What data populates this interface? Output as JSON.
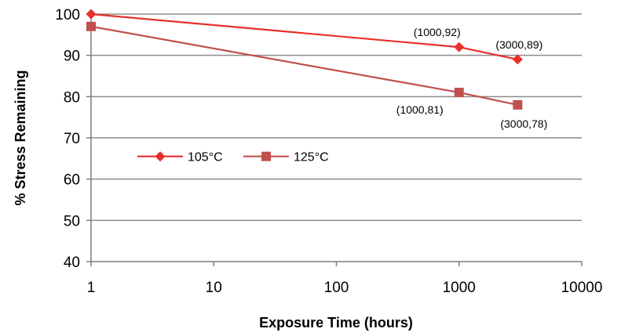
{
  "chart_data": {
    "type": "line",
    "xlabel": "Exposure Time (hours)",
    "ylabel": "% Stress Remaining",
    "xscale": "log",
    "xlim": [
      1,
      10000
    ],
    "ylim": [
      40,
      100
    ],
    "x_ticks": [
      1,
      10,
      100,
      1000,
      10000
    ],
    "x_tick_labels": [
      "1",
      "10",
      "100",
      "1000",
      "10000"
    ],
    "y_ticks": [
      40,
      50,
      60,
      70,
      80,
      90,
      100
    ],
    "y_tick_labels": [
      "40",
      "50",
      "60",
      "70",
      "80",
      "90",
      "100"
    ],
    "grid": "horizontal",
    "legend_position": "left-middle",
    "series": [
      {
        "name": "105°C",
        "color": "#e8302b",
        "marker": "diamond",
        "points": [
          {
            "x": 1,
            "y": 100
          },
          {
            "x": 1000,
            "y": 92
          },
          {
            "x": 3000,
            "y": 89
          }
        ]
      },
      {
        "name": "125°C",
        "color": "#c0504d",
        "marker": "square",
        "points": [
          {
            "x": 1,
            "y": 97
          },
          {
            "x": 1000,
            "y": 81
          },
          {
            "x": 3000,
            "y": 78
          }
        ]
      }
    ],
    "annotations": [
      {
        "text": "(1000,92)",
        "x": 1000,
        "y": 92,
        "position": "above-left"
      },
      {
        "text": "(3000,89)",
        "x": 3000,
        "y": 89,
        "position": "above"
      },
      {
        "text": "(1000,81)",
        "x": 1000,
        "y": 81,
        "position": "below-left"
      },
      {
        "text": "(3000,78)",
        "x": 3000,
        "y": 78,
        "position": "below"
      }
    ]
  }
}
